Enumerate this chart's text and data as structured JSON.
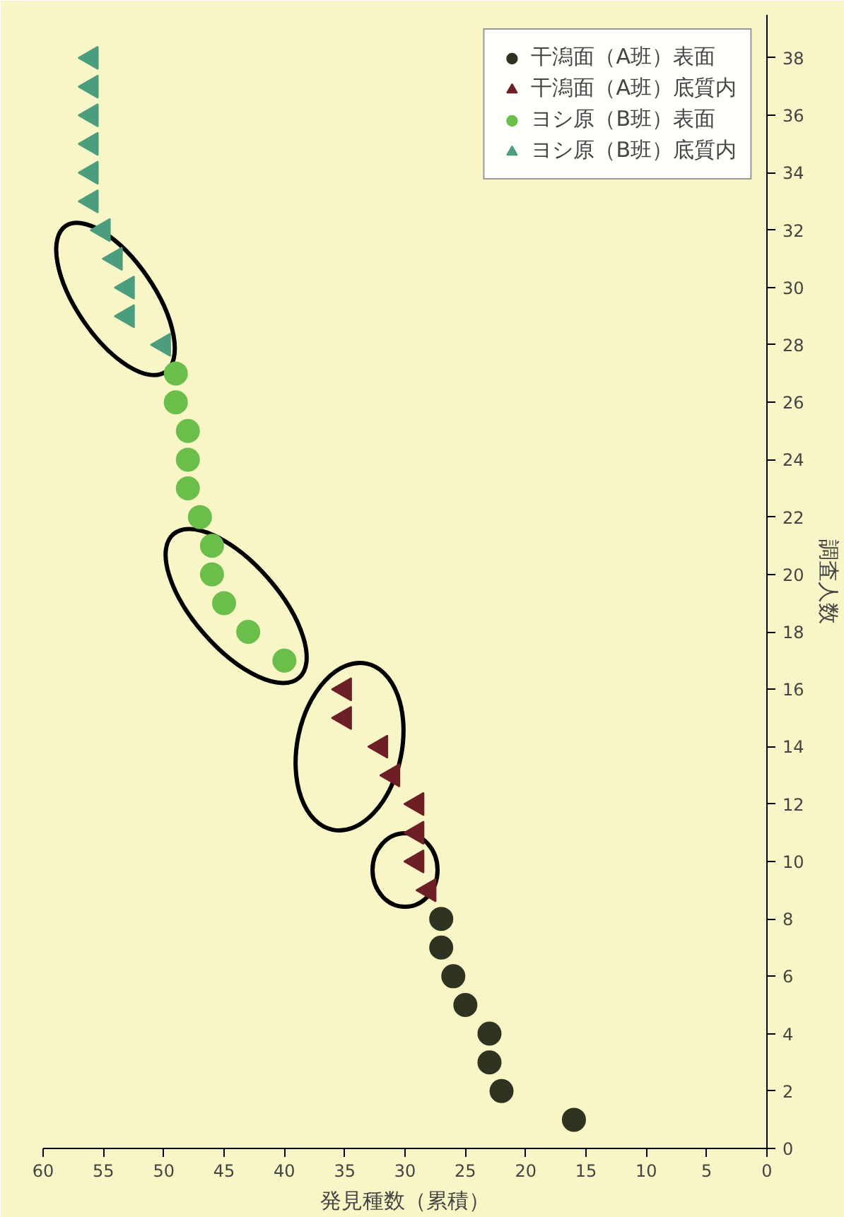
{
  "chart_data": {
    "type": "scatter",
    "xlabel": "発見種数（累積）",
    "ylabel": "調査人数",
    "xlim": [
      60,
      0
    ],
    "xticks": [
      60,
      55,
      50,
      45,
      40,
      35,
      30,
      25,
      20,
      15,
      10,
      5,
      0
    ],
    "ylim": [
      0,
      39.5
    ],
    "yticks": [
      0,
      2,
      4,
      6,
      8,
      10,
      12,
      14,
      16,
      18,
      20,
      22,
      24,
      26,
      28,
      30,
      32,
      34,
      36,
      38
    ],
    "grid": false,
    "legend": "top right",
    "series": [
      {
        "name": "干潟面（A班）表面",
        "color": "#2f3320",
        "marker": "circle",
        "x": [
          16,
          22,
          23,
          23,
          25,
          26,
          27,
          27
        ],
        "values": [
          1,
          2,
          3,
          4,
          5,
          6,
          7,
          8
        ]
      },
      {
        "name": "干潟面（A班）底質内",
        "color": "#6e1f25",
        "marker": "triangle",
        "x": [
          28,
          29,
          29,
          29,
          31,
          32,
          35,
          35
        ],
        "values": [
          9,
          10,
          11,
          12,
          13,
          14,
          15,
          16
        ]
      },
      {
        "name": "ヨシ原（B班）表面",
        "color": "#6abf4b",
        "marker": "circle",
        "x": [
          40,
          43,
          45,
          46,
          46,
          47,
          48,
          48,
          48,
          49,
          49
        ],
        "values": [
          17,
          18,
          19,
          20,
          21,
          22,
          23,
          24,
          25,
          26,
          27
        ]
      },
      {
        "name": "ヨシ原（B班）底質内",
        "color": "#4a9e7e",
        "marker": "triangle",
        "x": [
          50,
          53,
          53,
          54,
          55,
          56,
          56,
          56,
          56,
          56,
          56
        ],
        "values": [
          28,
          29,
          30,
          31,
          32,
          33,
          34,
          35,
          36,
          37,
          38
        ]
      }
    ]
  }
}
